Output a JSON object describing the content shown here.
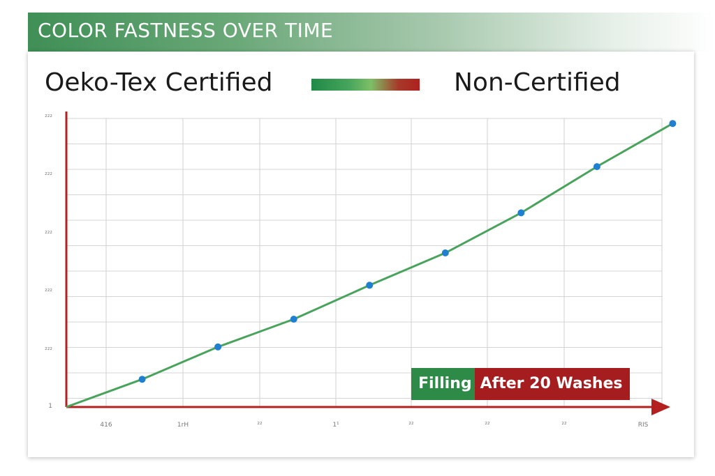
{
  "header": {
    "title": "COLOR FASTNESS OVER TIME"
  },
  "legend": {
    "left_label": "Oeko-Tex Certified",
    "right_label": "Non-Certified"
  },
  "badge": {
    "green_label": "Filling",
    "red_label": "After 20 Washes"
  },
  "colors": {
    "series_line": "#4aa35d",
    "marker": "#1f7fd0",
    "axis": "#b3201f",
    "badge_green": "#2e8b47",
    "badge_red": "#a51d1f"
  },
  "chart_data": {
    "type": "line",
    "title": "COLOR FASTNESS OVER TIME",
    "xlabel": "",
    "ylabel": "",
    "x_tick_labels": [
      "416",
      "1rH",
      "²²",
      "1¹",
      "²²",
      "²²",
      "²²",
      "RIS"
    ],
    "y_tick_labels": [
      "1",
      "²²²",
      "²²²",
      "²²²",
      "²²²",
      "²²²"
    ],
    "x": [
      0,
      1,
      2,
      3,
      4,
      5,
      6,
      7,
      8
    ],
    "xlim": [
      0,
      8.5
    ],
    "ylim": [
      0,
      9
    ],
    "grid": true,
    "series": [
      {
        "values": [
          0,
          0.9,
          1.95,
          2.85,
          3.95,
          5.0,
          6.3,
          7.8,
          9.2
        ],
        "marker_from_index": 1
      }
    ]
  }
}
